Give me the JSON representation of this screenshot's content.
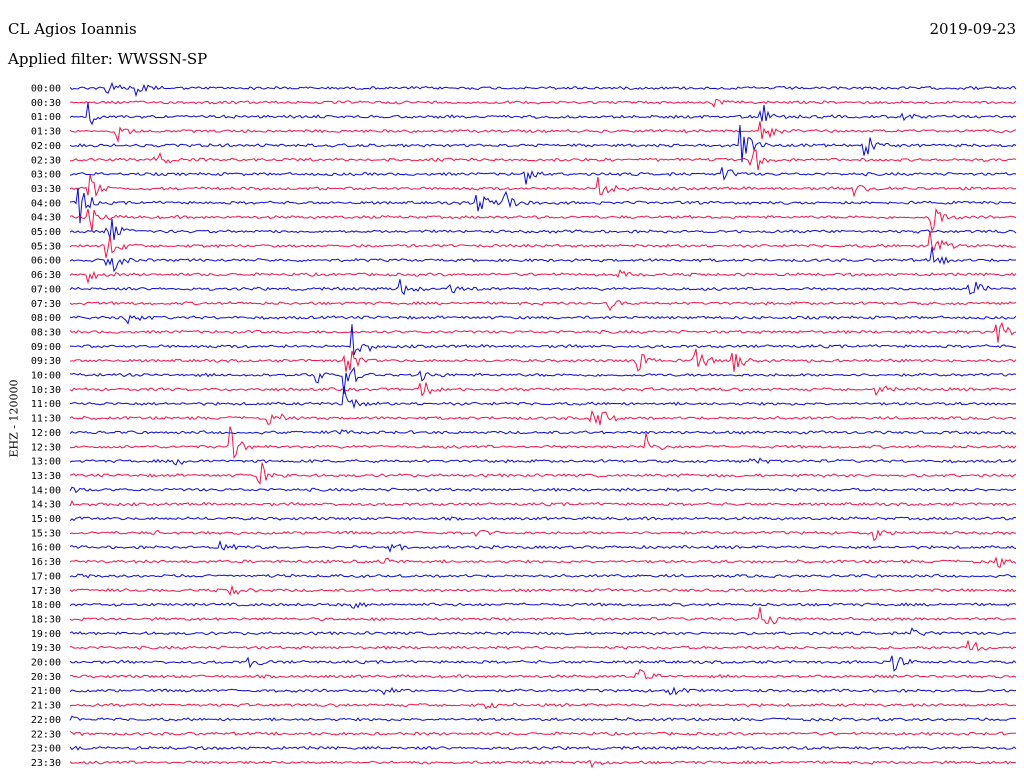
{
  "header": {
    "station": "CL Agios Ioannis",
    "filter": "Applied filter: WWSSN-SP",
    "date": "2019-09-23"
  },
  "side_label": "EHZ - 120000",
  "colors": {
    "series_a": "#0a0ad2",
    "series_b": "#f01446"
  },
  "chart_data": {
    "type": "line",
    "title": "CL Agios Ioannis",
    "subtitle": "Applied filter: WWSSN-SP",
    "ylabel": "EHZ - 120000",
    "grid": false,
    "tick_labels": [
      "00:00",
      "00:30",
      "01:00",
      "01:30",
      "02:00",
      "02:30",
      "03:00",
      "03:30",
      "04:00",
      "04:30",
      "05:00",
      "05:30",
      "06:00",
      "06:30",
      "07:00",
      "07:30",
      "08:00",
      "08:30",
      "09:00",
      "09:30",
      "10:00",
      "10:30",
      "11:00",
      "11:30",
      "12:00",
      "12:30",
      "13:00",
      "13:30",
      "14:00",
      "14:30",
      "15:00",
      "15:30",
      "16:00",
      "16:30",
      "17:00",
      "17:30",
      "18:00",
      "18:30",
      "19:00",
      "19:30",
      "20:00",
      "20:30",
      "21:00",
      "21:30",
      "22:00",
      "22:30",
      "23:00",
      "23:30"
    ],
    "series": [
      {
        "values": [
          {
            "t": 0.04,
            "amp": 0.35
          },
          {
            "t": 0.07,
            "amp": 0.4
          }
        ]
      },
      {
        "values": [
          {
            "t": 0.68,
            "amp": 0.2
          }
        ]
      },
      {
        "values": [
          {
            "t": 0.02,
            "amp": 0.5
          },
          {
            "t": 0.88,
            "amp": 0.2
          },
          {
            "t": 0.73,
            "amp": 0.7
          }
        ]
      },
      {
        "values": [
          {
            "t": 0.05,
            "amp": 0.5
          },
          {
            "t": 0.73,
            "amp": 0.9
          }
        ]
      },
      {
        "values": [
          {
            "t": 0.71,
            "amp": 1.0
          },
          {
            "t": 0.84,
            "amp": 0.6
          }
        ]
      },
      {
        "values": [
          {
            "t": 0.09,
            "amp": 0.8
          },
          {
            "t": 0.72,
            "amp": 1.0
          }
        ]
      },
      {
        "values": [
          {
            "t": 0.48,
            "amp": 0.5
          },
          {
            "t": 0.69,
            "amp": 1.0
          }
        ]
      },
      {
        "values": [
          {
            "t": 0.56,
            "amp": 0.8
          },
          {
            "t": 0.83,
            "amp": 0.3
          },
          {
            "t": 0.02,
            "amp": 1.0
          }
        ]
      },
      {
        "values": [
          {
            "t": 0.01,
            "amp": 1.0
          },
          {
            "t": 0.43,
            "amp": 0.6
          },
          {
            "t": 0.46,
            "amp": 0.7
          }
        ]
      },
      {
        "values": [
          {
            "t": 0.91,
            "amp": 1.0
          },
          {
            "t": 0.02,
            "amp": 0.9
          }
        ]
      },
      {
        "values": [
          {
            "t": 0.04,
            "amp": 1.0
          }
        ]
      },
      {
        "values": [
          {
            "t": 0.04,
            "amp": 0.8
          },
          {
            "t": 0.91,
            "amp": 0.8
          }
        ]
      },
      {
        "values": [
          {
            "t": 0.04,
            "amp": 1.0
          },
          {
            "t": 0.91,
            "amp": 0.7
          }
        ]
      },
      {
        "values": [
          {
            "t": 0.02,
            "amp": 0.4
          },
          {
            "t": 0.58,
            "amp": 0.2
          }
        ]
      },
      {
        "values": [
          {
            "t": 0.35,
            "amp": 0.6
          },
          {
            "t": 0.4,
            "amp": 0.4
          },
          {
            "t": 0.95,
            "amp": 0.8
          }
        ]
      },
      {
        "values": [
          {
            "t": 0.57,
            "amp": 0.3
          }
        ]
      },
      {
        "values": [
          {
            "t": 0.06,
            "amp": 0.3
          }
        ]
      },
      {
        "values": [
          {
            "t": 0.98,
            "amp": 1.0
          }
        ]
      },
      {
        "values": [
          {
            "t": 0.3,
            "amp": 1.0
          }
        ]
      },
      {
        "values": [
          {
            "t": 0.29,
            "amp": 1.0
          },
          {
            "t": 0.6,
            "amp": 0.6
          },
          {
            "t": 0.66,
            "amp": 0.6
          },
          {
            "t": 0.7,
            "amp": 1.0
          }
        ]
      },
      {
        "values": [
          {
            "t": 0.26,
            "amp": 0.4
          },
          {
            "t": 0.29,
            "amp": 1.0
          },
          {
            "t": 0.37,
            "amp": 0.5
          }
        ]
      },
      {
        "values": [
          {
            "t": 0.37,
            "amp": 1.0
          },
          {
            "t": 0.85,
            "amp": 0.3
          }
        ]
      },
      {
        "values": [
          {
            "t": 0.29,
            "amp": 0.8
          }
        ]
      },
      {
        "values": [
          {
            "t": 0.21,
            "amp": 0.5
          },
          {
            "t": 0.55,
            "amp": 0.4
          },
          {
            "t": 0.56,
            "amp": 0.4
          }
        ]
      },
      {
        "values": [
          {
            "t": 0.28,
            "amp": 0.2
          }
        ]
      },
      {
        "values": [
          {
            "t": 0.17,
            "amp": 0.9
          },
          {
            "t": 0.61,
            "amp": 0.6
          }
        ]
      },
      {
        "values": [
          {
            "t": 0.11,
            "amp": 0.4
          },
          {
            "t": 0.72,
            "amp": 0.2
          }
        ]
      },
      {
        "values": [
          {
            "t": 0.2,
            "amp": 0.7
          }
        ]
      },
      {
        "values": [
          {
            "t": 0.0,
            "amp": 0.1
          }
        ]
      },
      {
        "values": [
          {
            "t": 0.0,
            "amp": 0.1
          }
        ]
      },
      {
        "values": [
          {
            "t": 0.0,
            "amp": 0.1
          }
        ]
      },
      {
        "values": [
          {
            "t": 0.09,
            "amp": 0.2
          },
          {
            "t": 0.43,
            "amp": 0.2
          },
          {
            "t": 0.85,
            "amp": 0.4
          }
        ]
      },
      {
        "values": [
          {
            "t": 0.16,
            "amp": 0.4
          },
          {
            "t": 0.34,
            "amp": 0.2
          }
        ]
      },
      {
        "values": [
          {
            "t": 0.33,
            "amp": 0.2
          },
          {
            "t": 0.98,
            "amp": 0.3
          }
        ]
      },
      {
        "values": [
          {
            "t": 0.0,
            "amp": 0.1
          }
        ]
      },
      {
        "values": [
          {
            "t": 0.17,
            "amp": 0.3
          }
        ]
      },
      {
        "values": [
          {
            "t": 0.3,
            "amp": 0.3
          }
        ]
      },
      {
        "values": [
          {
            "t": 0.73,
            "amp": 0.9
          }
        ]
      },
      {
        "values": [
          {
            "t": 0.89,
            "amp": 0.3
          }
        ]
      },
      {
        "values": [
          {
            "t": 0.95,
            "amp": 0.5
          }
        ]
      },
      {
        "values": [
          {
            "t": 0.19,
            "amp": 0.3
          },
          {
            "t": 0.87,
            "amp": 0.6
          }
        ]
      },
      {
        "values": [
          {
            "t": 0.6,
            "amp": 0.4
          }
        ]
      },
      {
        "values": [
          {
            "t": 0.33,
            "amp": 0.2
          },
          {
            "t": 0.63,
            "amp": 0.4
          }
        ]
      },
      {
        "values": [
          {
            "t": 0.44,
            "amp": 0.2
          }
        ]
      },
      {
        "values": [
          {
            "t": 0.0,
            "amp": 0.1
          }
        ]
      },
      {
        "values": [
          {
            "t": 0.0,
            "amp": 0.1
          }
        ]
      },
      {
        "values": [
          {
            "t": 0.0,
            "amp": 0.1
          }
        ]
      },
      {
        "values": [
          {
            "t": 0.55,
            "amp": 0.2
          }
        ]
      }
    ]
  }
}
